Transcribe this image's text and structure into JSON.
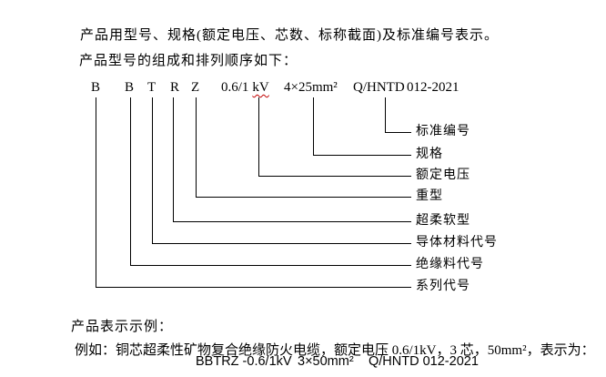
{
  "intro": {
    "line1": "产品用型号、规格(额定电压、芯数、标称截面)及标准编号表示。",
    "line2": "产品型号的组成和排列顺序如下："
  },
  "model_code": {
    "series": "B",
    "insulation": "B",
    "conductor": "T",
    "soft_type": "R",
    "heavy_type": "Z",
    "voltage_value": "0.6/1",
    "voltage_unit": "kV",
    "spec": "4×25mm²",
    "standard_org": "Q/HNTD",
    "standard_num": "012-2021"
  },
  "callout_labels": [
    "标准编号",
    "规格",
    "额定电压",
    "重型",
    "超柔软型",
    "导体材料代号",
    "绝缘料代号",
    "系列代号"
  ],
  "example": {
    "heading": "产品表示示例：",
    "description": "例如：铜芯超柔性矿物复合绝缘防火电缆，额定电压 0.6/1kV，3 芯，50mm²，表示为：",
    "display_model": "BBTRZ -0.6/1kV",
    "display_spec": "3×50mm²",
    "display_standard": "Q/HNTD 012-2021"
  },
  "colors": {
    "text": "#000000",
    "spellcheck_underline": "#c00000",
    "background": "#ffffff"
  }
}
